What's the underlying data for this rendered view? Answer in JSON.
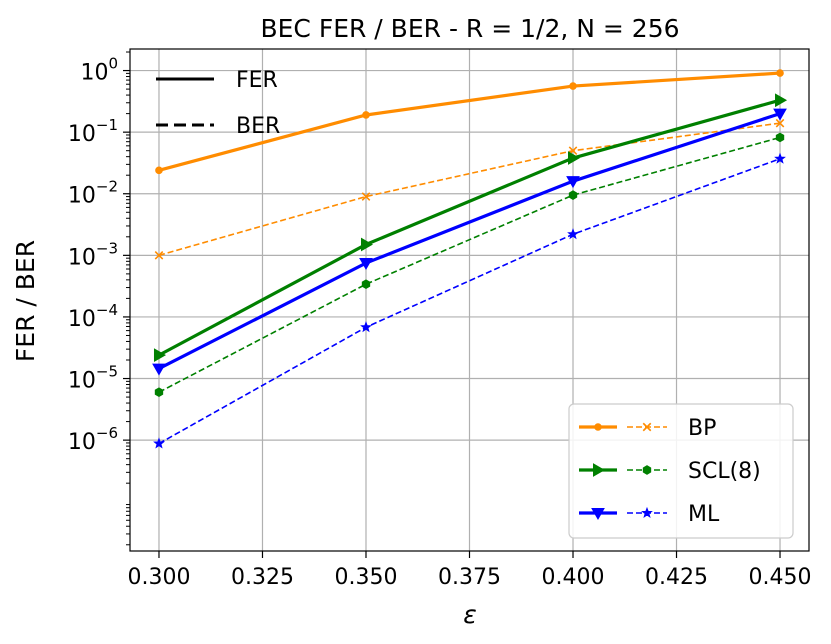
{
  "chart_data": {
    "type": "line",
    "title": "BEC FER / BER - R = 1/2, N = 256",
    "xlabel": "ε",
    "ylabel": "FER / BER",
    "yscale": "log",
    "xlim": [
      0.293,
      0.457
    ],
    "ylim_log10": [
      -7.8,
      0.35
    ],
    "x_ticks": [
      0.3,
      0.325,
      0.35,
      0.375,
      0.4,
      0.425,
      0.45
    ],
    "x_tick_labels": [
      "0.300",
      "0.325",
      "0.350",
      "0.375",
      "0.400",
      "0.425",
      "0.450"
    ],
    "y_ticks": [
      {
        "base": "10",
        "exp": "0",
        "value": 1
      },
      {
        "base": "10",
        "exp": "−1",
        "value": 0.1
      },
      {
        "base": "10",
        "exp": "−2",
        "value": 0.01
      },
      {
        "base": "10",
        "exp": "−3",
        "value": 0.001
      },
      {
        "base": "10",
        "exp": "−4",
        "value": 0.0001
      },
      {
        "base": "10",
        "exp": "−5",
        "value": 1e-05
      },
      {
        "base": "10",
        "exp": "−6",
        "value": 1e-06
      }
    ],
    "grid": true,
    "x": [
      0.3,
      0.35,
      0.4,
      0.45
    ],
    "series": [
      {
        "name": "BP",
        "metric": "FER",
        "color": "#ff8c00",
        "linestyle": "solid",
        "marker": "dot",
        "values": [
          0.024,
          0.19,
          0.56,
          0.91
        ]
      },
      {
        "name": "BP",
        "metric": "BER",
        "color": "#ff8c00",
        "linestyle": "dashed",
        "marker": "x",
        "values": [
          0.001,
          0.009,
          0.05,
          0.14
        ]
      },
      {
        "name": "SCL(8)",
        "metric": "FER",
        "color": "#008000",
        "linestyle": "solid",
        "marker": "triangle-right",
        "values": [
          2.4e-05,
          0.0015,
          0.038,
          0.33
        ]
      },
      {
        "name": "SCL(8)",
        "metric": "BER",
        "color": "#008000",
        "linestyle": "dashed",
        "marker": "hexagon",
        "values": [
          6e-06,
          0.00034,
          0.0095,
          0.082
        ]
      },
      {
        "name": "ML",
        "metric": "FER",
        "color": "#0000ff",
        "linestyle": "solid",
        "marker": "triangle-down",
        "values": [
          1.45e-05,
          0.00075,
          0.016,
          0.2
        ]
      },
      {
        "name": "ML",
        "metric": "BER",
        "color": "#0000ff",
        "linestyle": "dashed",
        "marker": "star",
        "values": [
          8.8e-07,
          6.8e-05,
          0.0022,
          0.037
        ]
      }
    ],
    "style_legend": {
      "placement": "top-left",
      "entries": [
        {
          "label": "FER",
          "linestyle": "solid"
        },
        {
          "label": "BER",
          "linestyle": "dashed"
        }
      ]
    },
    "legend": {
      "placement": "lower-right",
      "entries": [
        {
          "label": "BP",
          "color": "#ff8c00",
          "fer_marker": "dot",
          "ber_marker": "x"
        },
        {
          "label": "SCL(8)",
          "color": "#008000",
          "fer_marker": "triangle-right",
          "ber_marker": "hexagon"
        },
        {
          "label": "ML",
          "color": "#0000ff",
          "fer_marker": "triangle-down",
          "ber_marker": "star"
        }
      ]
    }
  }
}
